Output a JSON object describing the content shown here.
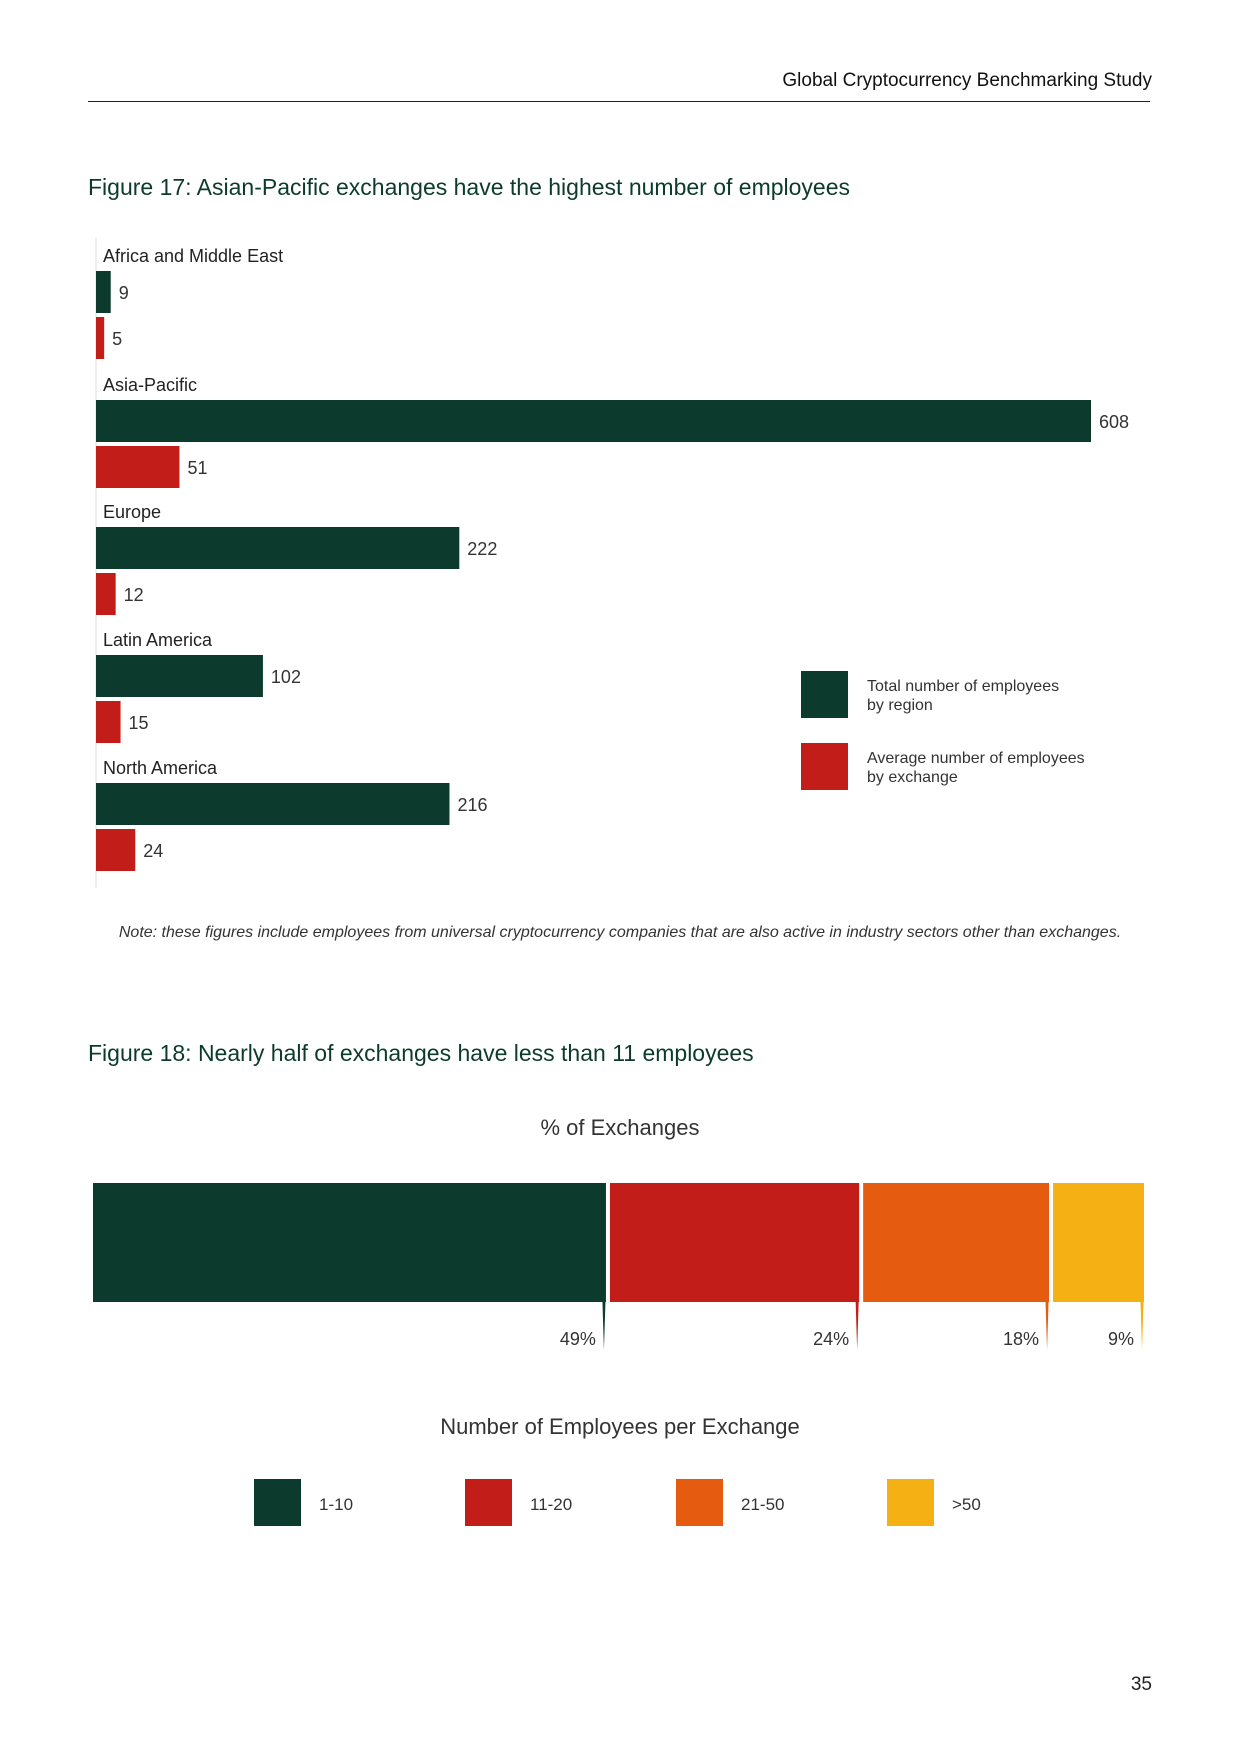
{
  "header": {
    "title": "Global Cryptocurrency Benchmarking Study"
  },
  "figure17": {
    "title": "Figure 17: Asian-Pacific exchanges have the highest number of employees",
    "note": "Note: these figures include employees from universal cryptocurrency companies that are also active in industry sectors other than exchanges."
  },
  "figure18": {
    "title": "Figure 18: Nearly half of exchanges have less than 11 employees"
  },
  "page_number": "35",
  "colors": {
    "green": "#0c3b2e",
    "red": "#c21d18",
    "orange": "#e55b10",
    "yellow": "#f5b014"
  },
  "chart_data": [
    {
      "type": "bar",
      "orientation": "horizontal",
      "title": "Figure 17: Asian-Pacific exchanges have the highest number of employees",
      "categories": [
        "Africa and Middle East",
        "Asia-Pacific",
        "Europe",
        "Latin America",
        "North America"
      ],
      "series": [
        {
          "name": "Total number of employees by region",
          "legend_lines": [
            "Total number of employees",
            "by region"
          ],
          "color": "#0c3b2e",
          "values": [
            9,
            608,
            222,
            102,
            216
          ]
        },
        {
          "name": "Average number of employees by exchange",
          "legend_lines": [
            "Average number of employees",
            "by exchange"
          ],
          "color": "#c21d18",
          "values": [
            5,
            51,
            12,
            15,
            24
          ]
        }
      ],
      "xlim": [
        0,
        608
      ],
      "legend": "right"
    },
    {
      "type": "bar",
      "orientation": "stacked-horizontal",
      "title": "% of Exchanges",
      "xlabel": "Number of Employees per Exchange",
      "categories": [
        "1-10",
        "11-20",
        "21-50",
        ">50"
      ],
      "values": [
        49,
        24,
        18,
        9
      ],
      "labels": [
        "49%",
        "24%",
        "18%",
        "9%"
      ],
      "colors": [
        "#0c3b2e",
        "#c21d18",
        "#e55b10",
        "#f5b014"
      ],
      "legend": "bottom"
    }
  ]
}
